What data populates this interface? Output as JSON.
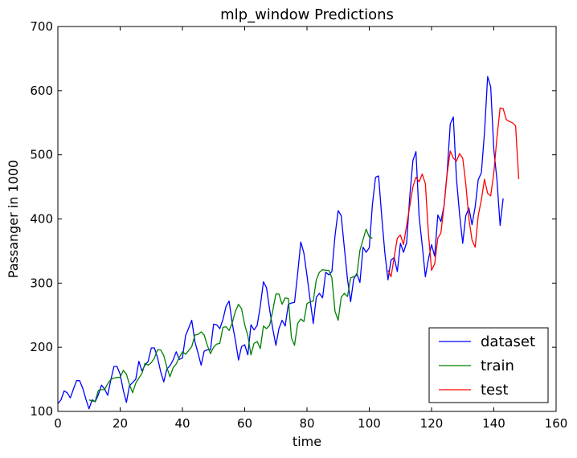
{
  "chart_data": {
    "type": "line",
    "title": "mlp_window Predictions",
    "xlabel": "time",
    "ylabel": "Passanger in 1000",
    "xlim": [
      0,
      160
    ],
    "ylim": [
      100,
      700
    ],
    "xticks": [
      0,
      20,
      40,
      60,
      80,
      100,
      120,
      140,
      160
    ],
    "yticks": [
      100,
      200,
      300,
      400,
      500,
      600,
      700
    ],
    "grid": false,
    "legend_position": "lower-right",
    "series": [
      {
        "name": "dataset",
        "color": "#0000ff",
        "x_start": 0,
        "values": [
          112,
          118,
          132,
          129,
          121,
          135,
          148,
          148,
          136,
          119,
          104,
          118,
          115,
          126,
          141,
          135,
          125,
          149,
          170,
          170,
          158,
          133,
          114,
          140,
          145,
          150,
          178,
          163,
          172,
          178,
          199,
          199,
          184,
          162,
          146,
          166,
          171,
          180,
          193,
          181,
          183,
          218,
          230,
          242,
          209,
          191,
          172,
          194,
          196,
          196,
          236,
          235,
          229,
          243,
          264,
          272,
          237,
          211,
          180,
          201,
          204,
          188,
          235,
          227,
          234,
          264,
          302,
          293,
          259,
          229,
          203,
          229,
          242,
          233,
          267,
          269,
          270,
          315,
          364,
          347,
          312,
          274,
          237,
          278,
          284,
          277,
          317,
          313,
          318,
          374,
          413,
          405,
          355,
          306,
          271,
          306,
          315,
          301,
          356,
          348,
          355,
          422,
          465,
          467,
          404,
          347,
          305,
          336,
          340,
          318,
          362,
          348,
          363,
          435,
          491,
          505,
          404,
          359,
          310,
          337,
          360,
          342,
          406,
          396,
          420,
          472,
          548,
          559,
          463,
          407,
          362,
          405,
          417,
          391,
          419,
          461,
          472,
          535,
          622,
          606,
          508,
          461,
          390,
          432
        ]
      },
      {
        "name": "train",
        "color": "#008000",
        "x_start": 10,
        "values": [
          118,
          116,
          116,
          133,
          134,
          134,
          143,
          150,
          152,
          153,
          153,
          164,
          158,
          142,
          129,
          144,
          152,
          159,
          175,
          172,
          176,
          183,
          196,
          196,
          187,
          169,
          154,
          168,
          174,
          184,
          193,
          189,
          195,
          201,
          219,
          220,
          224,
          219,
          203,
          190,
          200,
          205,
          206,
          231,
          232,
          226,
          238,
          256,
          267,
          260,
          235,
          218,
          188,
          206,
          209,
          198,
          233,
          229,
          234,
          257,
          283,
          283,
          267,
          277,
          276,
          215,
          203,
          237,
          244,
          240,
          268,
          271,
          272,
          305,
          317,
          321,
          320,
          320,
          308,
          256,
          242,
          278,
          284,
          279,
          308,
          310,
          312,
          351,
          368,
          384,
          372,
          370
        ]
      },
      {
        "name": "test",
        "color": "#ff0000",
        "x_start": 106,
        "values": [
          320,
          310,
          340,
          370,
          375,
          360,
          390,
          420,
          450,
          465,
          458,
          470,
          455,
          378,
          320,
          330,
          370,
          378,
          420,
          470,
          506,
          495,
          490,
          502,
          495,
          455,
          400,
          367,
          356,
          405,
          430,
          462,
          440,
          436,
          472,
          527,
          573,
          572,
          555,
          552,
          550,
          545,
          462
        ]
      }
    ]
  }
}
